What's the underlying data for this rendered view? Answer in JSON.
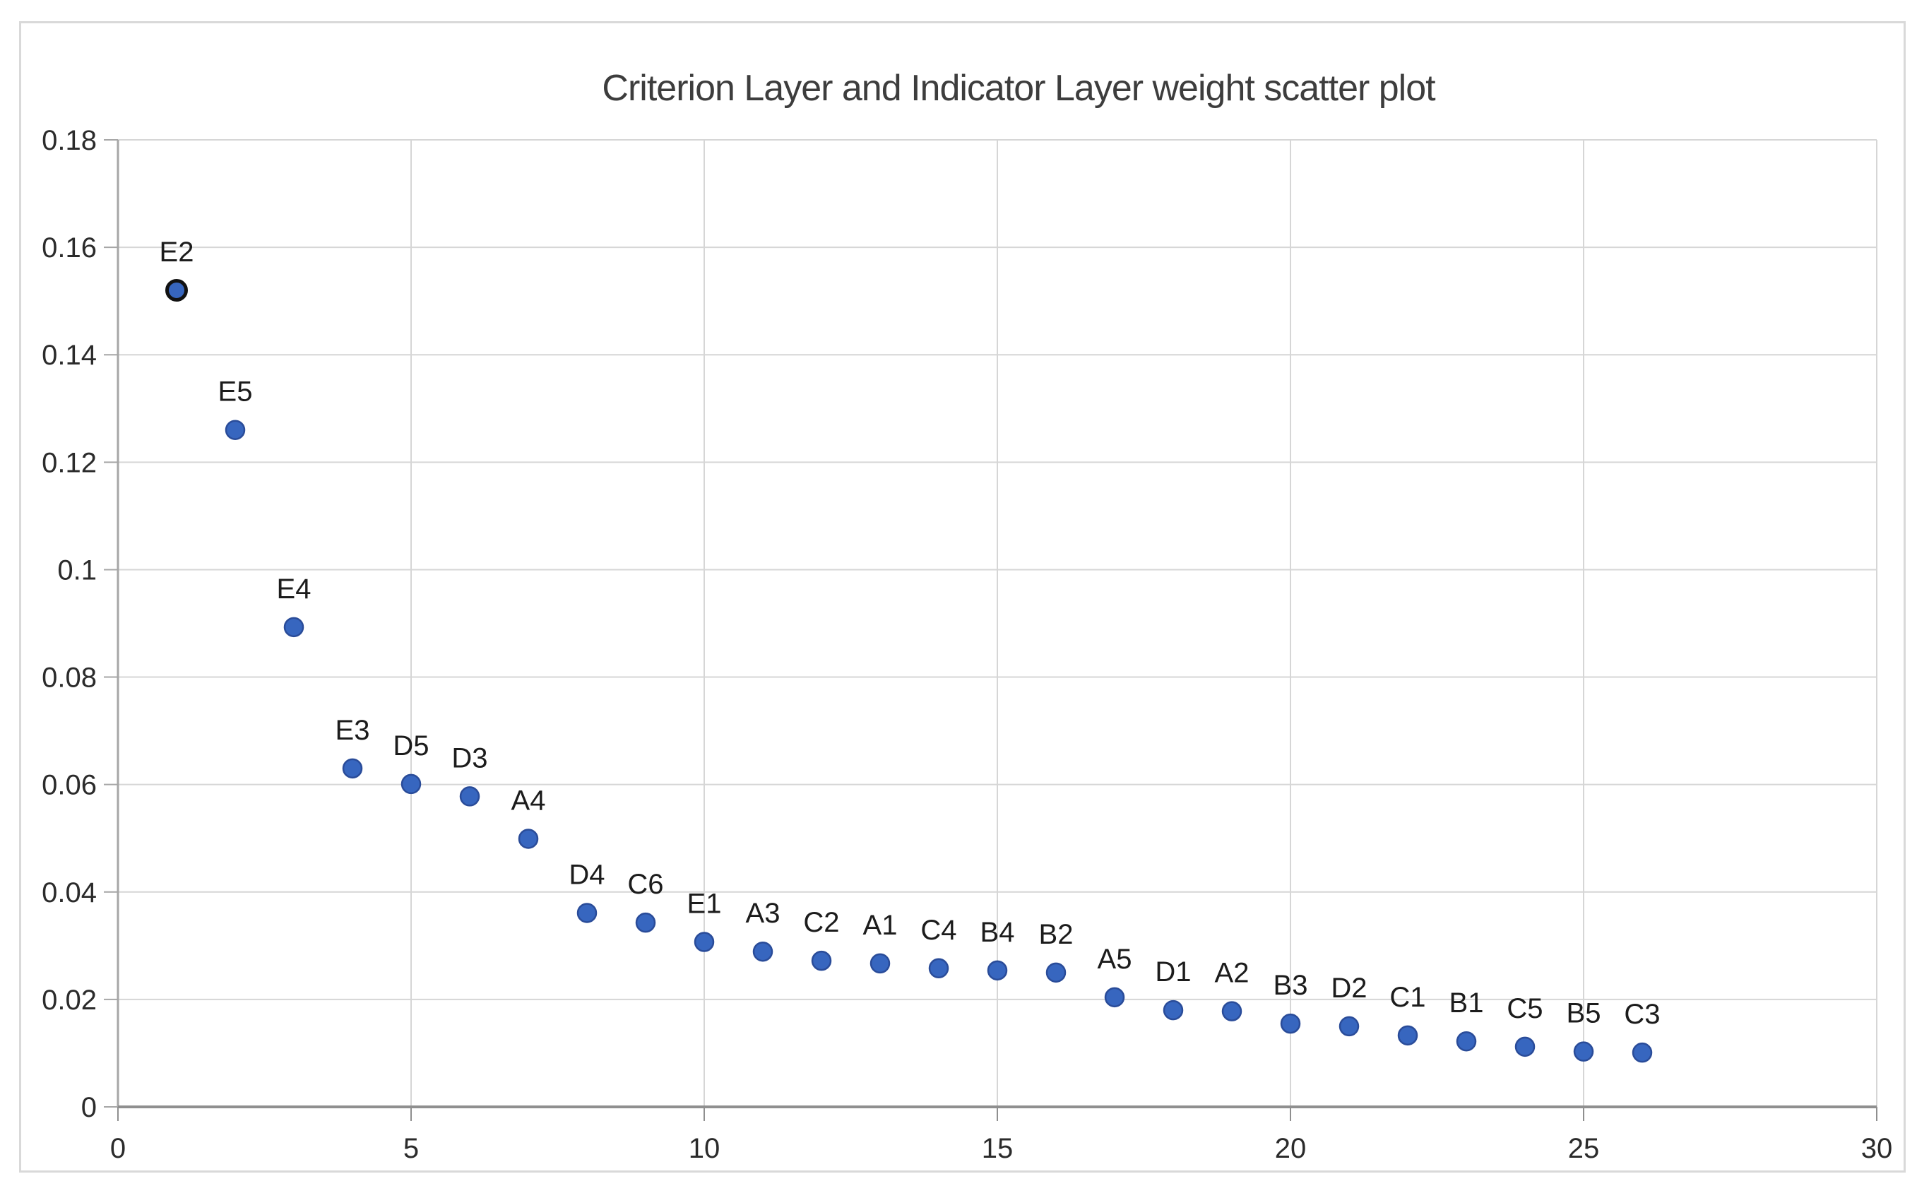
{
  "chart_data": {
    "type": "scatter",
    "title": "Criterion Layer and Indicator Layer weight scatter plot",
    "xlabel": "",
    "ylabel": "",
    "xlim": [
      0,
      30
    ],
    "ylim": [
      0,
      0.18
    ],
    "grid": true,
    "legend": "none",
    "x_ticks": [
      {
        "value": 0,
        "label": "0"
      },
      {
        "value": 5,
        "label": "5"
      },
      {
        "value": 10,
        "label": "10"
      },
      {
        "value": 15,
        "label": "15"
      },
      {
        "value": 20,
        "label": "20"
      },
      {
        "value": 25,
        "label": "25"
      },
      {
        "value": 30,
        "label": "30"
      }
    ],
    "y_ticks": [
      {
        "value": 0,
        "label": "0"
      },
      {
        "value": 0.02,
        "label": "0.02"
      },
      {
        "value": 0.04,
        "label": "0.04"
      },
      {
        "value": 0.06,
        "label": "0.06"
      },
      {
        "value": 0.08,
        "label": "0.08"
      },
      {
        "value": 0.1,
        "label": "0.1"
      },
      {
        "value": 0.12,
        "label": "0.12"
      },
      {
        "value": 0.14,
        "label": "0.14"
      },
      {
        "value": 0.16,
        "label": "0.16"
      },
      {
        "value": 0.18,
        "label": "0.18"
      }
    ],
    "points": [
      {
        "label": "E2",
        "x": 1,
        "y": 0.152
      },
      {
        "label": "E5",
        "x": 2,
        "y": 0.126
      },
      {
        "label": "E4",
        "x": 3,
        "y": 0.0893
      },
      {
        "label": "E3",
        "x": 4,
        "y": 0.063
      },
      {
        "label": "D5",
        "x": 5,
        "y": 0.0601
      },
      {
        "label": "D3",
        "x": 6,
        "y": 0.0578
      },
      {
        "label": "A4",
        "x": 7,
        "y": 0.0499
      },
      {
        "label": "D4",
        "x": 8,
        "y": 0.0361
      },
      {
        "label": "C6",
        "x": 9,
        "y": 0.0343
      },
      {
        "label": "E1",
        "x": 10,
        "y": 0.0307
      },
      {
        "label": "A3",
        "x": 11,
        "y": 0.0289
      },
      {
        "label": "C2",
        "x": 12,
        "y": 0.0272
      },
      {
        "label": "A1",
        "x": 13,
        "y": 0.0267
      },
      {
        "label": "C4",
        "x": 14,
        "y": 0.0258
      },
      {
        "label": "B4",
        "x": 15,
        "y": 0.0254
      },
      {
        "label": "B2",
        "x": 16,
        "y": 0.025
      },
      {
        "label": "A5",
        "x": 17,
        "y": 0.0204
      },
      {
        "label": "D1",
        "x": 18,
        "y": 0.018
      },
      {
        "label": "A2",
        "x": 19,
        "y": 0.0178
      },
      {
        "label": "B3",
        "x": 20,
        "y": 0.0155
      },
      {
        "label": "D2",
        "x": 21,
        "y": 0.015
      },
      {
        "label": "C1",
        "x": 22,
        "y": 0.0133
      },
      {
        "label": "B1",
        "x": 23,
        "y": 0.0122
      },
      {
        "label": "C5",
        "x": 24,
        "y": 0.0112
      },
      {
        "label": "B5",
        "x": 25,
        "y": 0.0103
      },
      {
        "label": "C3",
        "x": 26,
        "y": 0.0101
      }
    ],
    "highlight_point": "E2",
    "colors": {
      "marker_fill": "#3766bf",
      "marker_stroke": "#2a4c99",
      "highlight_stroke": "#121212",
      "gridline": "#d6d6d6",
      "y_axis": "#a6a6a6",
      "x_axis": "#8f8f8f",
      "frame_border": "#d9d9d9",
      "title_color": "#3d3d3d",
      "tick_label_color": "#2b2b2b",
      "point_label_color": "#1c1c1c"
    }
  }
}
